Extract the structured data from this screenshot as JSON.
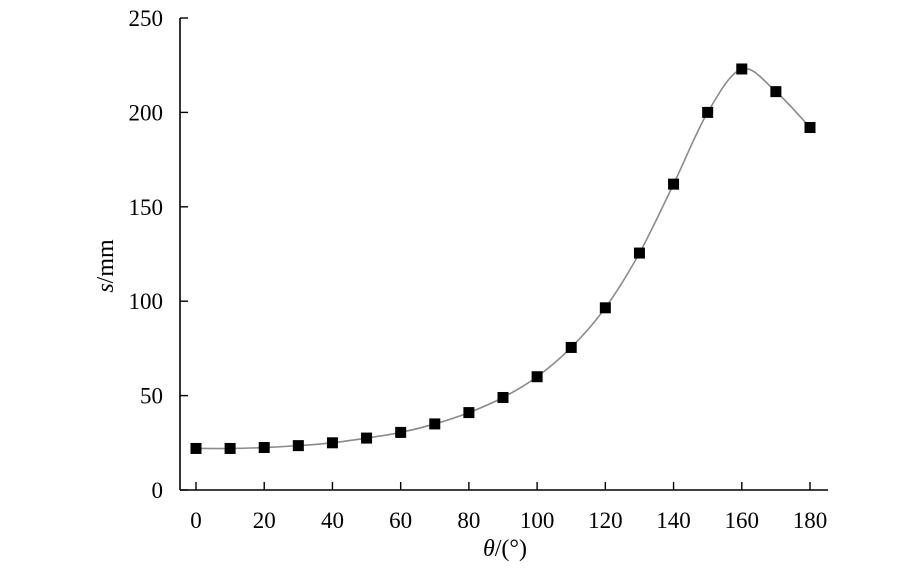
{
  "chart_data": {
    "type": "line",
    "title": "",
    "xlabel": "θ/(°)",
    "ylabel": "s/mm",
    "xlim": [
      0,
      180
    ],
    "ylim": [
      0,
      250
    ],
    "xticks": [
      0,
      20,
      40,
      60,
      80,
      100,
      120,
      140,
      160,
      180
    ],
    "yticks": [
      0,
      50,
      100,
      150,
      200,
      250
    ],
    "grid": false,
    "legend": "none",
    "series": [
      {
        "x": [
          0,
          10,
          20,
          30,
          40,
          50,
          60,
          70,
          80,
          90,
          100,
          110,
          120,
          130,
          140,
          150,
          160,
          170,
          180
        ],
        "y": [
          22,
          22,
          22.5,
          23.5,
          25,
          27.5,
          30.5,
          35,
          41,
          49,
          60,
          75.5,
          96.5,
          125.5,
          162,
          200,
          223,
          211,
          192
        ],
        "marker": "square",
        "marker_color": "#000000",
        "line_color": "#8a8a8a"
      }
    ]
  }
}
